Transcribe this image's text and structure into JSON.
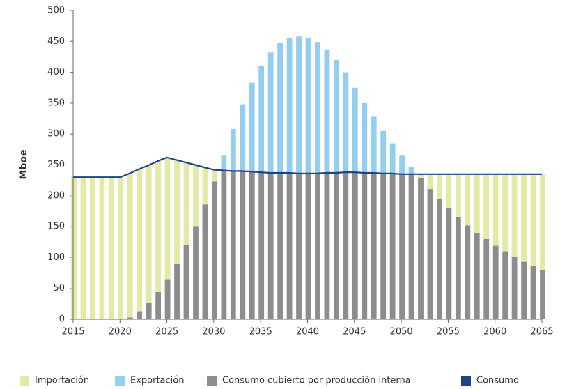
{
  "chart_data": {
    "type": "bar",
    "stacked": true,
    "y_label": "Mboe",
    "x": [
      2015,
      2016,
      2017,
      2018,
      2019,
      2020,
      2021,
      2022,
      2023,
      2024,
      2025,
      2026,
      2027,
      2028,
      2029,
      2030,
      2031,
      2032,
      2033,
      2034,
      2035,
      2036,
      2037,
      2038,
      2039,
      2040,
      2041,
      2042,
      2043,
      2044,
      2045,
      2046,
      2047,
      2048,
      2049,
      2050,
      2051,
      2052,
      2053,
      2054,
      2055,
      2056,
      2057,
      2058,
      2059,
      2060,
      2061,
      2062,
      2063,
      2064,
      2065
    ],
    "series": [
      {
        "name": "Importación",
        "color": "#e5e9a6",
        "type": "bar",
        "values": [
          230,
          230,
          230,
          230,
          230,
          230,
          233,
          230,
          222,
          212,
          197,
          168,
          134,
          99,
          60,
          19,
          0,
          0,
          0,
          0,
          0,
          0,
          0,
          0,
          0,
          0,
          0,
          0,
          0,
          0,
          0,
          0,
          0,
          0,
          0,
          0,
          0,
          7,
          24,
          40,
          55,
          69,
          83,
          95,
          105,
          116,
          125,
          134,
          142,
          149,
          156
        ]
      },
      {
        "name": "Exportación",
        "color": "#93cdf0",
        "type": "bar",
        "values": [
          0,
          0,
          0,
          0,
          0,
          0,
          0,
          0,
          0,
          0,
          0,
          0,
          0,
          0,
          0,
          0,
          24,
          68,
          108,
          144,
          173,
          195,
          210,
          218,
          222,
          220,
          213,
          199,
          183,
          162,
          137,
          113,
          91,
          69,
          49,
          30,
          11,
          0,
          0,
          0,
          0,
          0,
          0,
          0,
          0,
          0,
          0,
          0,
          0,
          0,
          0
        ]
      },
      {
        "name": "Consumo cubierto por producción interna",
        "color": "#8d8d8f",
        "type": "bar",
        "values": [
          0,
          0,
          0,
          0,
          0,
          0,
          3,
          13,
          27,
          44,
          65,
          90,
          120,
          151,
          186,
          223,
          241,
          240,
          240,
          239,
          238,
          237,
          237,
          237,
          236,
          236,
          236,
          237,
          237,
          238,
          238,
          237,
          237,
          236,
          236,
          235,
          235,
          228,
          211,
          195,
          180,
          166,
          152,
          140,
          130,
          119,
          110,
          101,
          93,
          86,
          79
        ]
      },
      {
        "name": "Consumo",
        "color": "#1f4289",
        "type": "line",
        "values": [
          230,
          230,
          230,
          230,
          230,
          230,
          236,
          243,
          249,
          256,
          262,
          258,
          254,
          250,
          246,
          242,
          241,
          240,
          240,
          239,
          238,
          237,
          237,
          237,
          236,
          236,
          236,
          237,
          237,
          238,
          238,
          237,
          237,
          236,
          236,
          235,
          235,
          235,
          235,
          235,
          235,
          235,
          235,
          235,
          235,
          235,
          235,
          235,
          235,
          235,
          235
        ]
      }
    ],
    "xlim": [
      2015,
      2065
    ],
    "xticks": [
      2015,
      2020,
      2025,
      2030,
      2035,
      2040,
      2045,
      2050,
      2055,
      2060,
      2065
    ],
    "ylim": [
      0,
      500
    ],
    "yticks": [
      0,
      50,
      100,
      150,
      200,
      250,
      300,
      350,
      400,
      450,
      500
    ],
    "grid": false,
    "legend": "bottom"
  }
}
